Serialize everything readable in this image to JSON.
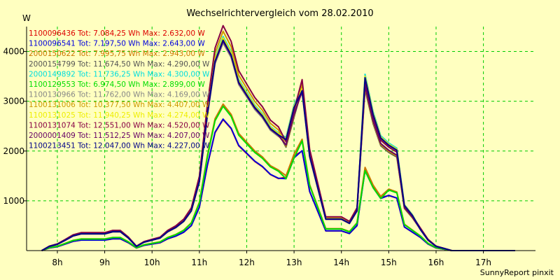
{
  "chart_data": {
    "type": "line",
    "title": "Wechselrichtervergleich vom 28.02.2010",
    "ylabel": "W",
    "xlabel": "",
    "watermark": "SunnyReport pinxit",
    "grid": true,
    "legend_placement": "top-left inside plot",
    "xlim": [
      7.35,
      18.1
    ],
    "ylim": [
      0,
      4500
    ],
    "xticks": [
      {
        "value": 8,
        "label": "8h"
      },
      {
        "value": 9,
        "label": "9h"
      },
      {
        "value": 10,
        "label": "10h"
      },
      {
        "value": 11,
        "label": "11h"
      },
      {
        "value": 12,
        "label": "12h"
      },
      {
        "value": 13,
        "label": "13h"
      },
      {
        "value": 14,
        "label": "14h"
      },
      {
        "value": 15,
        "label": "15h"
      },
      {
        "value": 16,
        "label": "16h"
      },
      {
        "value": 17,
        "label": "17h"
      }
    ],
    "yticks": [
      {
        "value": 1000,
        "label": "1000"
      },
      {
        "value": 2000,
        "label": "2000"
      },
      {
        "value": 3000,
        "label": "3000"
      },
      {
        "value": 4000,
        "label": "4000"
      }
    ],
    "x": [
      7.67,
      7.83,
      8.0,
      8.17,
      8.33,
      8.5,
      8.67,
      8.83,
      9.0,
      9.17,
      9.33,
      9.5,
      9.67,
      9.83,
      10.0,
      10.17,
      10.33,
      10.5,
      10.67,
      10.83,
      11.0,
      11.17,
      11.33,
      11.5,
      11.67,
      11.83,
      12.0,
      12.17,
      12.33,
      12.5,
      12.67,
      12.83,
      13.0,
      13.17,
      13.33,
      13.5,
      13.67,
      13.83,
      14.0,
      14.17,
      14.33,
      14.5,
      14.67,
      14.83,
      15.0,
      15.17,
      15.33,
      15.5,
      15.67,
      15.83,
      16.0,
      16.17,
      16.33,
      16.5,
      16.67,
      16.83,
      17.0,
      17.17,
      17.33,
      17.5,
      17.67
    ],
    "series": [
      {
        "name": "1100096436 Tot: 7.084,25 Wh Max: 2.632,00 W",
        "color": "#dd0000",
        "peak": 2632,
        "group": "low"
      },
      {
        "name": "1100096541 Tot: 7.197,50 Wh Max: 2.643,00 W",
        "color": "#0000dd",
        "peak": 2643,
        "group": "low"
      },
      {
        "name": "2000150622 Tot: 7.995,75 Wh Max: 2.943,00 W",
        "color": "#cc7700",
        "peak": 2943,
        "group": "mid"
      },
      {
        "name": "2000154799 Tot: 11.674,50 Wh Max: 4.290,00 W",
        "color": "#555555",
        "peak": 4290,
        "group": "high"
      },
      {
        "name": "2000149892 Tot: 11.736,25 Wh Max: 4.300,00 W",
        "color": "#00dddd",
        "peak": 4300,
        "group": "high"
      },
      {
        "name": "1100129553 Tot: 6.974,50 Wh Max: 2.899,00 W",
        "color": "#00dd00",
        "peak": 2899,
        "group": "low"
      },
      {
        "name": "1100130966 Tot: 11.762,00 Wh Max: 4.169,00 W",
        "color": "#888888",
        "peak": 4169,
        "group": "high"
      },
      {
        "name": "1100131006 Tot: 10.377,50 Wh Max: 4.407,00 W",
        "color": "#cc9900",
        "peak": 4407,
        "group": "high"
      },
      {
        "name": "1100131025 Tot: 11.940,25 Wh Max: 4.274,00 W",
        "color": "#eeee00",
        "peak": 4274,
        "group": "high"
      },
      {
        "name": "1100131074 Tot: 12.551,00 Wh Max: 4.520,00 W",
        "color": "#880044",
        "peak": 4520,
        "group": "high"
      },
      {
        "name": "2000001409 Tot: 11.512,25 Wh Max: 4.207,00 W",
        "color": "#660066",
        "peak": 4207,
        "group": "high"
      },
      {
        "name": "1100213451 Tot: 12.047,00 Wh Max: 4.227,00 W",
        "color": "#000088",
        "peak": 4227,
        "group": "high"
      }
    ],
    "shape": [
      0.0,
      0.02,
      0.03,
      0.05,
      0.07,
      0.08,
      0.08,
      0.08,
      0.08,
      0.09,
      0.09,
      0.06,
      0.02,
      0.04,
      0.05,
      0.06,
      0.09,
      0.11,
      0.14,
      0.19,
      0.33,
      0.65,
      0.9,
      1.0,
      0.93,
      0.8,
      0.74,
      0.68,
      0.64,
      0.58,
      0.55,
      0.62,
      0.8,
      0.76,
      0.45,
      0.3,
      0.15,
      0.15,
      0.15,
      0.13,
      0.19,
      0.66,
      0.52,
      0.43,
      0.42,
      0.4,
      0.18,
      0.14,
      0.1,
      0.05,
      0.02,
      0.01,
      0.0,
      0.0,
      0.0,
      0.0,
      0.0,
      0.0,
      0.0,
      0.0,
      0.0
    ]
  }
}
